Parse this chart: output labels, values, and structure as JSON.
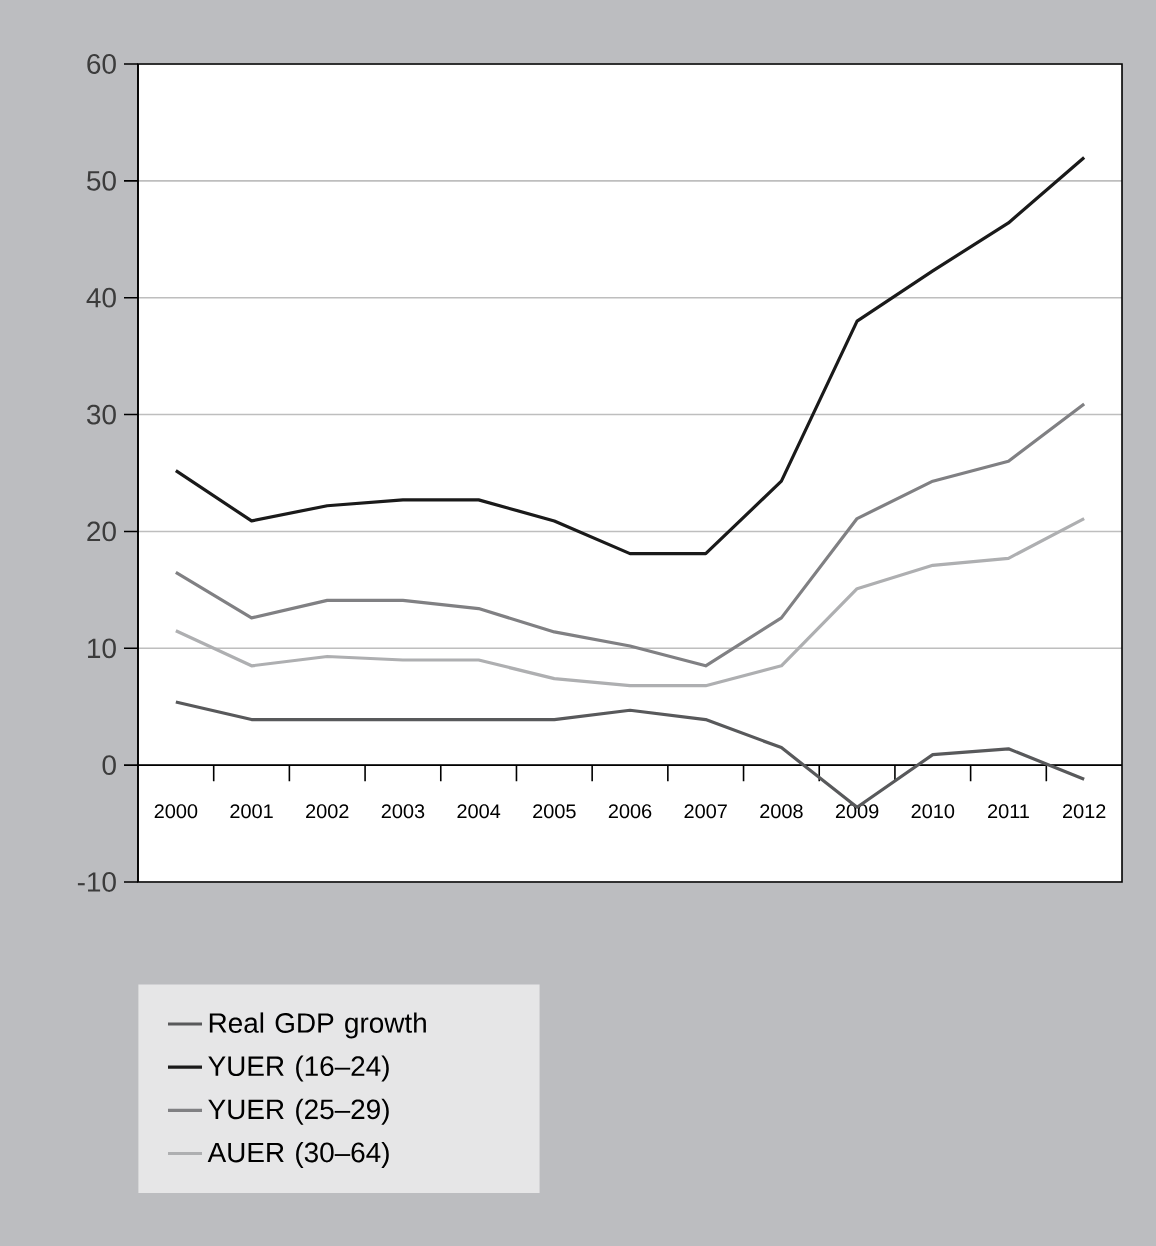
{
  "chart_data": {
    "type": "line",
    "categories": [
      "2000",
      "2001",
      "2002",
      "2003",
      "2004",
      "2005",
      "2006",
      "2007",
      "2008",
      "2009",
      "2010",
      "2011",
      "2012"
    ],
    "ylim": [
      -10,
      60
    ],
    "yticks": [
      -10,
      0,
      10,
      20,
      30,
      40,
      50,
      60
    ],
    "grid": "y",
    "legend": "bottom left",
    "line_style": "solid",
    "marker": "none",
    "series": [
      {
        "name": "Real GDP growth",
        "color": "#58595b",
        "values": [
          5.4,
          3.9,
          3.9,
          3.9,
          3.9,
          3.9,
          4.7,
          3.9,
          1.5,
          -3.6,
          0.9,
          1.4,
          -1.2
        ]
      },
      {
        "name": "YUER (16–24)",
        "color": "#1a1a1a",
        "values": [
          25.2,
          20.9,
          22.2,
          22.7,
          22.7,
          20.9,
          18.1,
          18.1,
          24.3,
          38.0,
          42.3,
          46.4,
          52.0
        ]
      },
      {
        "name": "YUER (25–29)",
        "color": "#808083",
        "values": [
          16.5,
          12.6,
          14.1,
          14.1,
          13.4,
          11.4,
          10.2,
          8.5,
          12.6,
          21.1,
          24.3,
          26.0,
          30.9
        ]
      },
      {
        "name": "AUER (30–64)",
        "color": "#aeafb1",
        "values": [
          11.5,
          8.5,
          9.3,
          9.0,
          9.0,
          7.4,
          6.8,
          6.8,
          8.5,
          15.1,
          17.1,
          17.7,
          21.1
        ]
      }
    ]
  }
}
